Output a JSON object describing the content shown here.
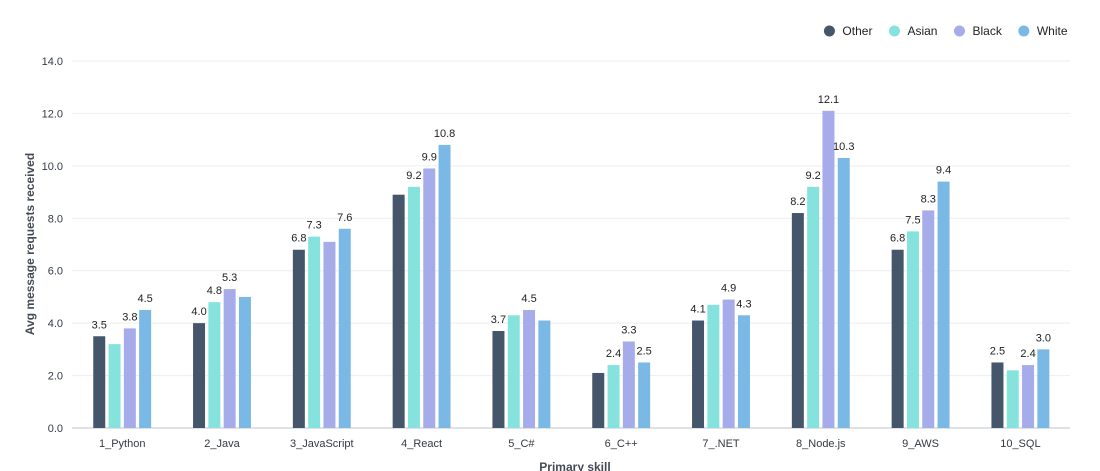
{
  "chart_data": {
    "type": "bar",
    "xlabel": "Primary skill",
    "ylabel": "Avg message requests received",
    "ylim": [
      0,
      14
    ],
    "yticks": [
      "0.0",
      "2.0",
      "4.0",
      "6.0",
      "8.0",
      "10.0",
      "12.0",
      "14.0"
    ],
    "grid": true,
    "legend_position": "top-right",
    "categories": [
      "1_Python",
      "2_Java",
      "3_JavaScript",
      "4_React",
      "5_C#",
      "6_C++",
      "7_.NET",
      "8_Node.js",
      "9_AWS",
      "10_SQL"
    ],
    "series": [
      {
        "name": "Other",
        "color": "#45566b",
        "values": [
          3.5,
          4.0,
          6.8,
          8.9,
          3.7,
          2.1,
          4.1,
          8.2,
          6.8,
          2.5
        ],
        "labels": [
          "3.5",
          "4.0",
          "6.8",
          "",
          "3.7",
          "",
          "4.1",
          "8.2",
          "6.8",
          "2.5"
        ]
      },
      {
        "name": "Asian",
        "color": "#86e2dd",
        "values": [
          3.2,
          4.8,
          7.3,
          9.2,
          4.3,
          2.4,
          4.7,
          9.2,
          7.5,
          2.2
        ],
        "labels": [
          "",
          "4.8",
          "7.3",
          "9.2",
          "",
          "2.4",
          "",
          "9.2",
          "7.5",
          ""
        ]
      },
      {
        "name": "Black",
        "color": "#a6abea",
        "values": [
          3.8,
          5.3,
          7.1,
          9.9,
          4.5,
          3.3,
          4.9,
          12.1,
          8.3,
          2.4
        ],
        "labels": [
          "3.8",
          "5.3",
          "",
          "9.9",
          "4.5",
          "3.3",
          "4.9",
          "12.1",
          "8.3",
          "2.4"
        ]
      },
      {
        "name": "White",
        "color": "#7ab8e6",
        "values": [
          4.5,
          5.0,
          7.6,
          10.8,
          4.1,
          2.5,
          4.3,
          10.3,
          9.4,
          3.0
        ],
        "labels": [
          "4.5",
          "",
          "7.6",
          "10.8",
          "",
          "2.5",
          "4.3",
          "10.3",
          "9.4",
          "3.0"
        ]
      }
    ]
  }
}
